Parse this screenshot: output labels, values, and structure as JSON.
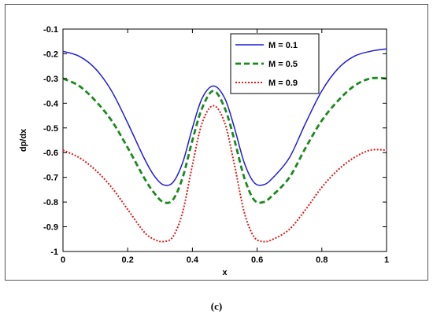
{
  "caption": "(c)",
  "chart_data": {
    "type": "line",
    "xlabel": "x",
    "ylabel": "dp/dx",
    "xlim": [
      0,
      1
    ],
    "ylim": [
      -1,
      -0.1
    ],
    "xticks": [
      "0",
      "0.2",
      "0.4",
      "0.6",
      "0.8",
      "1"
    ],
    "yticks": [
      "-0.1",
      "-0.2",
      "-0.3",
      "-0.4",
      "-0.5",
      "-0.6",
      "-0.7",
      "-0.8",
      "-0.9",
      "-1"
    ],
    "xtick_values": [
      0,
      0.2,
      0.4,
      0.6,
      0.8,
      1
    ],
    "ytick_values": [
      -0.1,
      -0.2,
      -0.3,
      -0.4,
      -0.5,
      -0.6,
      -0.7,
      -0.8,
      -0.9,
      -1
    ],
    "grid": false,
    "legend_position": "top-right",
    "x": [
      0,
      0.05,
      0.1,
      0.15,
      0.2,
      0.25,
      0.28,
      0.31,
      0.34,
      0.37,
      0.4,
      0.43,
      0.465,
      0.5,
      0.53,
      0.56,
      0.59,
      0.62,
      0.65,
      0.7,
      0.75,
      0.8,
      0.85,
      0.9,
      0.95,
      1
    ],
    "series": [
      {
        "name": "M = 0.1",
        "color": "#1f1fd6",
        "dash": "solid",
        "values": [
          -0.19,
          -0.21,
          -0.26,
          -0.35,
          -0.48,
          -0.62,
          -0.69,
          -0.73,
          -0.72,
          -0.64,
          -0.5,
          -0.38,
          -0.33,
          -0.38,
          -0.5,
          -0.64,
          -0.72,
          -0.73,
          -0.7,
          -0.62,
          -0.48,
          -0.35,
          -0.26,
          -0.21,
          -0.19,
          -0.18
        ]
      },
      {
        "name": "M = 0.5",
        "color": "#1a8a1a",
        "dash": "dashed",
        "values": [
          -0.3,
          -0.33,
          -0.39,
          -0.47,
          -0.58,
          -0.7,
          -0.76,
          -0.8,
          -0.79,
          -0.7,
          -0.55,
          -0.42,
          -0.35,
          -0.42,
          -0.55,
          -0.7,
          -0.79,
          -0.8,
          -0.77,
          -0.7,
          -0.58,
          -0.47,
          -0.39,
          -0.33,
          -0.3,
          -0.3
        ]
      },
      {
        "name": "M = 0.9",
        "color": "#e01a1a",
        "dash": "dotted",
        "values": [
          -0.59,
          -0.62,
          -0.67,
          -0.74,
          -0.83,
          -0.92,
          -0.95,
          -0.96,
          -0.94,
          -0.84,
          -0.65,
          -0.48,
          -0.41,
          -0.48,
          -0.65,
          -0.84,
          -0.94,
          -0.96,
          -0.95,
          -0.91,
          -0.83,
          -0.74,
          -0.67,
          -0.62,
          -0.59,
          -0.59
        ]
      }
    ]
  }
}
